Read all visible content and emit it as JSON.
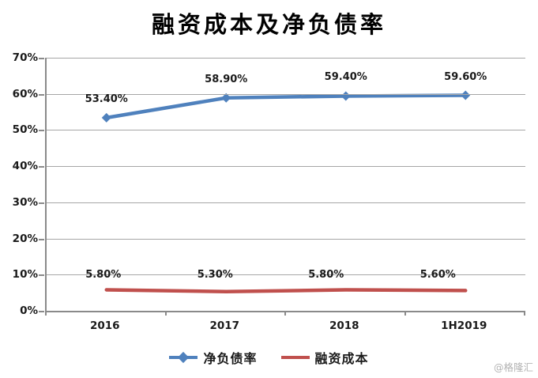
{
  "watermark": "@格隆汇",
  "chart_data": {
    "type": "line",
    "title": "融资成本及净负债率",
    "categories": [
      "2016",
      "2017",
      "2018",
      "1H2019"
    ],
    "series": [
      {
        "name": "净负债率",
        "color": "#4F81BD",
        "marker": "diamond",
        "values": [
          53.4,
          58.9,
          59.4,
          59.6
        ],
        "labels": [
          "53.40%",
          "58.90%",
          "59.40%",
          "59.60%"
        ]
      },
      {
        "name": "融资成本",
        "color": "#C0504D",
        "marker": "none",
        "values": [
          5.8,
          5.3,
          5.8,
          5.6
        ],
        "labels": [
          "5.80%",
          "5.30%",
          "5.80%",
          "5.60%"
        ]
      }
    ],
    "ylim": [
      0,
      70
    ],
    "ytick_step": 10,
    "ytick_labels": [
      "0%",
      "10%",
      "20%",
      "30%",
      "40%",
      "50%",
      "60%",
      "70%"
    ],
    "xlabel": "",
    "ylabel": "",
    "grid": true,
    "legend_position": "bottom"
  }
}
